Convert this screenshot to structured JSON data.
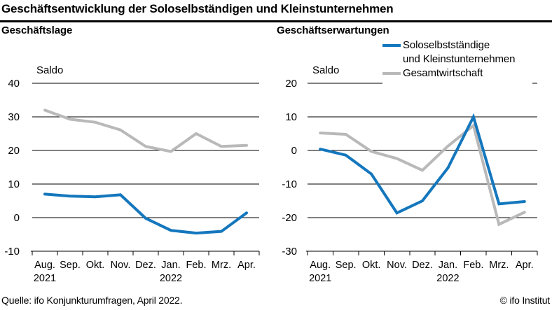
{
  "page": {
    "title": "Geschäftsentwicklung der Soloselbständigen und Kleinstunternehmen",
    "source": "Quelle: ifo Konjunkturumfragen, April 2022.",
    "copyright": "© ifo Institut"
  },
  "legend": {
    "items": [
      {
        "label": "Soloselbstständige und Kleinstunternehmen",
        "lines": [
          "Soloselbstständige",
          "und Kleinstunternehmen"
        ],
        "color": "#1477bd"
      },
      {
        "label": "Gesamtwirtschaft",
        "lines": [
          "Gesamtwirtschaft"
        ],
        "color": "#b9b9b9"
      }
    ]
  },
  "chart_data": [
    {
      "type": "line",
      "title": "Geschäftslage",
      "ylabel": "Saldo",
      "ylim": [
        -10,
        40
      ],
      "ytick_step": 10,
      "grid": true,
      "categories": [
        "Aug.",
        "Sep.",
        "Okt.",
        "Nov.",
        "Dez.",
        "Jan.",
        "Feb.",
        "Mrz.",
        "Apr."
      ],
      "year_labels": [
        {
          "index": 0,
          "label": "2021"
        },
        {
          "index": 5,
          "label": "2022"
        }
      ],
      "series": [
        {
          "id": "gesamtwirtschaft",
          "name": "Gesamtwirtschaft",
          "color": "#b9b9b9",
          "values": [
            32.0,
            29.3,
            28.4,
            26.1,
            21.2,
            19.7,
            25.0,
            21.2,
            21.5
          ]
        },
        {
          "id": "soloselbststaendige-kleinstunternehmen",
          "name": "Soloselbstständige und Kleinstunternehmen",
          "color": "#1477bd",
          "values": [
            7.0,
            6.4,
            6.2,
            6.8,
            -0.2,
            -3.8,
            -4.6,
            -4.1,
            1.4
          ]
        }
      ]
    },
    {
      "type": "line",
      "title": "Geschäftserwartungen",
      "ylabel": "Saldo",
      "ylim": [
        -30,
        20
      ],
      "ytick_step": 10,
      "grid": true,
      "categories": [
        "Aug.",
        "Sep.",
        "Okt.",
        "Nov.",
        "Dez.",
        "Jan.",
        "Feb.",
        "Mrz.",
        "Apr."
      ],
      "year_labels": [
        {
          "index": 0,
          "label": "2021"
        },
        {
          "index": 5,
          "label": "2022"
        }
      ],
      "series": [
        {
          "id": "gesamtwirtschaft",
          "name": "Gesamtwirtschaft",
          "color": "#b9b9b9",
          "values": [
            5.2,
            4.8,
            -0.3,
            -2.4,
            -5.9,
            1.3,
            7.4,
            -22.0,
            -18.4
          ]
        },
        {
          "id": "soloselbststaendige-kleinstunternehmen",
          "name": "Soloselbstständige und Kleinstunternehmen",
          "color": "#1477bd",
          "values": [
            0.4,
            -1.4,
            -7.0,
            -18.6,
            -15.0,
            -5.2,
            10.0,
            -15.9,
            -15.2
          ]
        }
      ]
    }
  ]
}
